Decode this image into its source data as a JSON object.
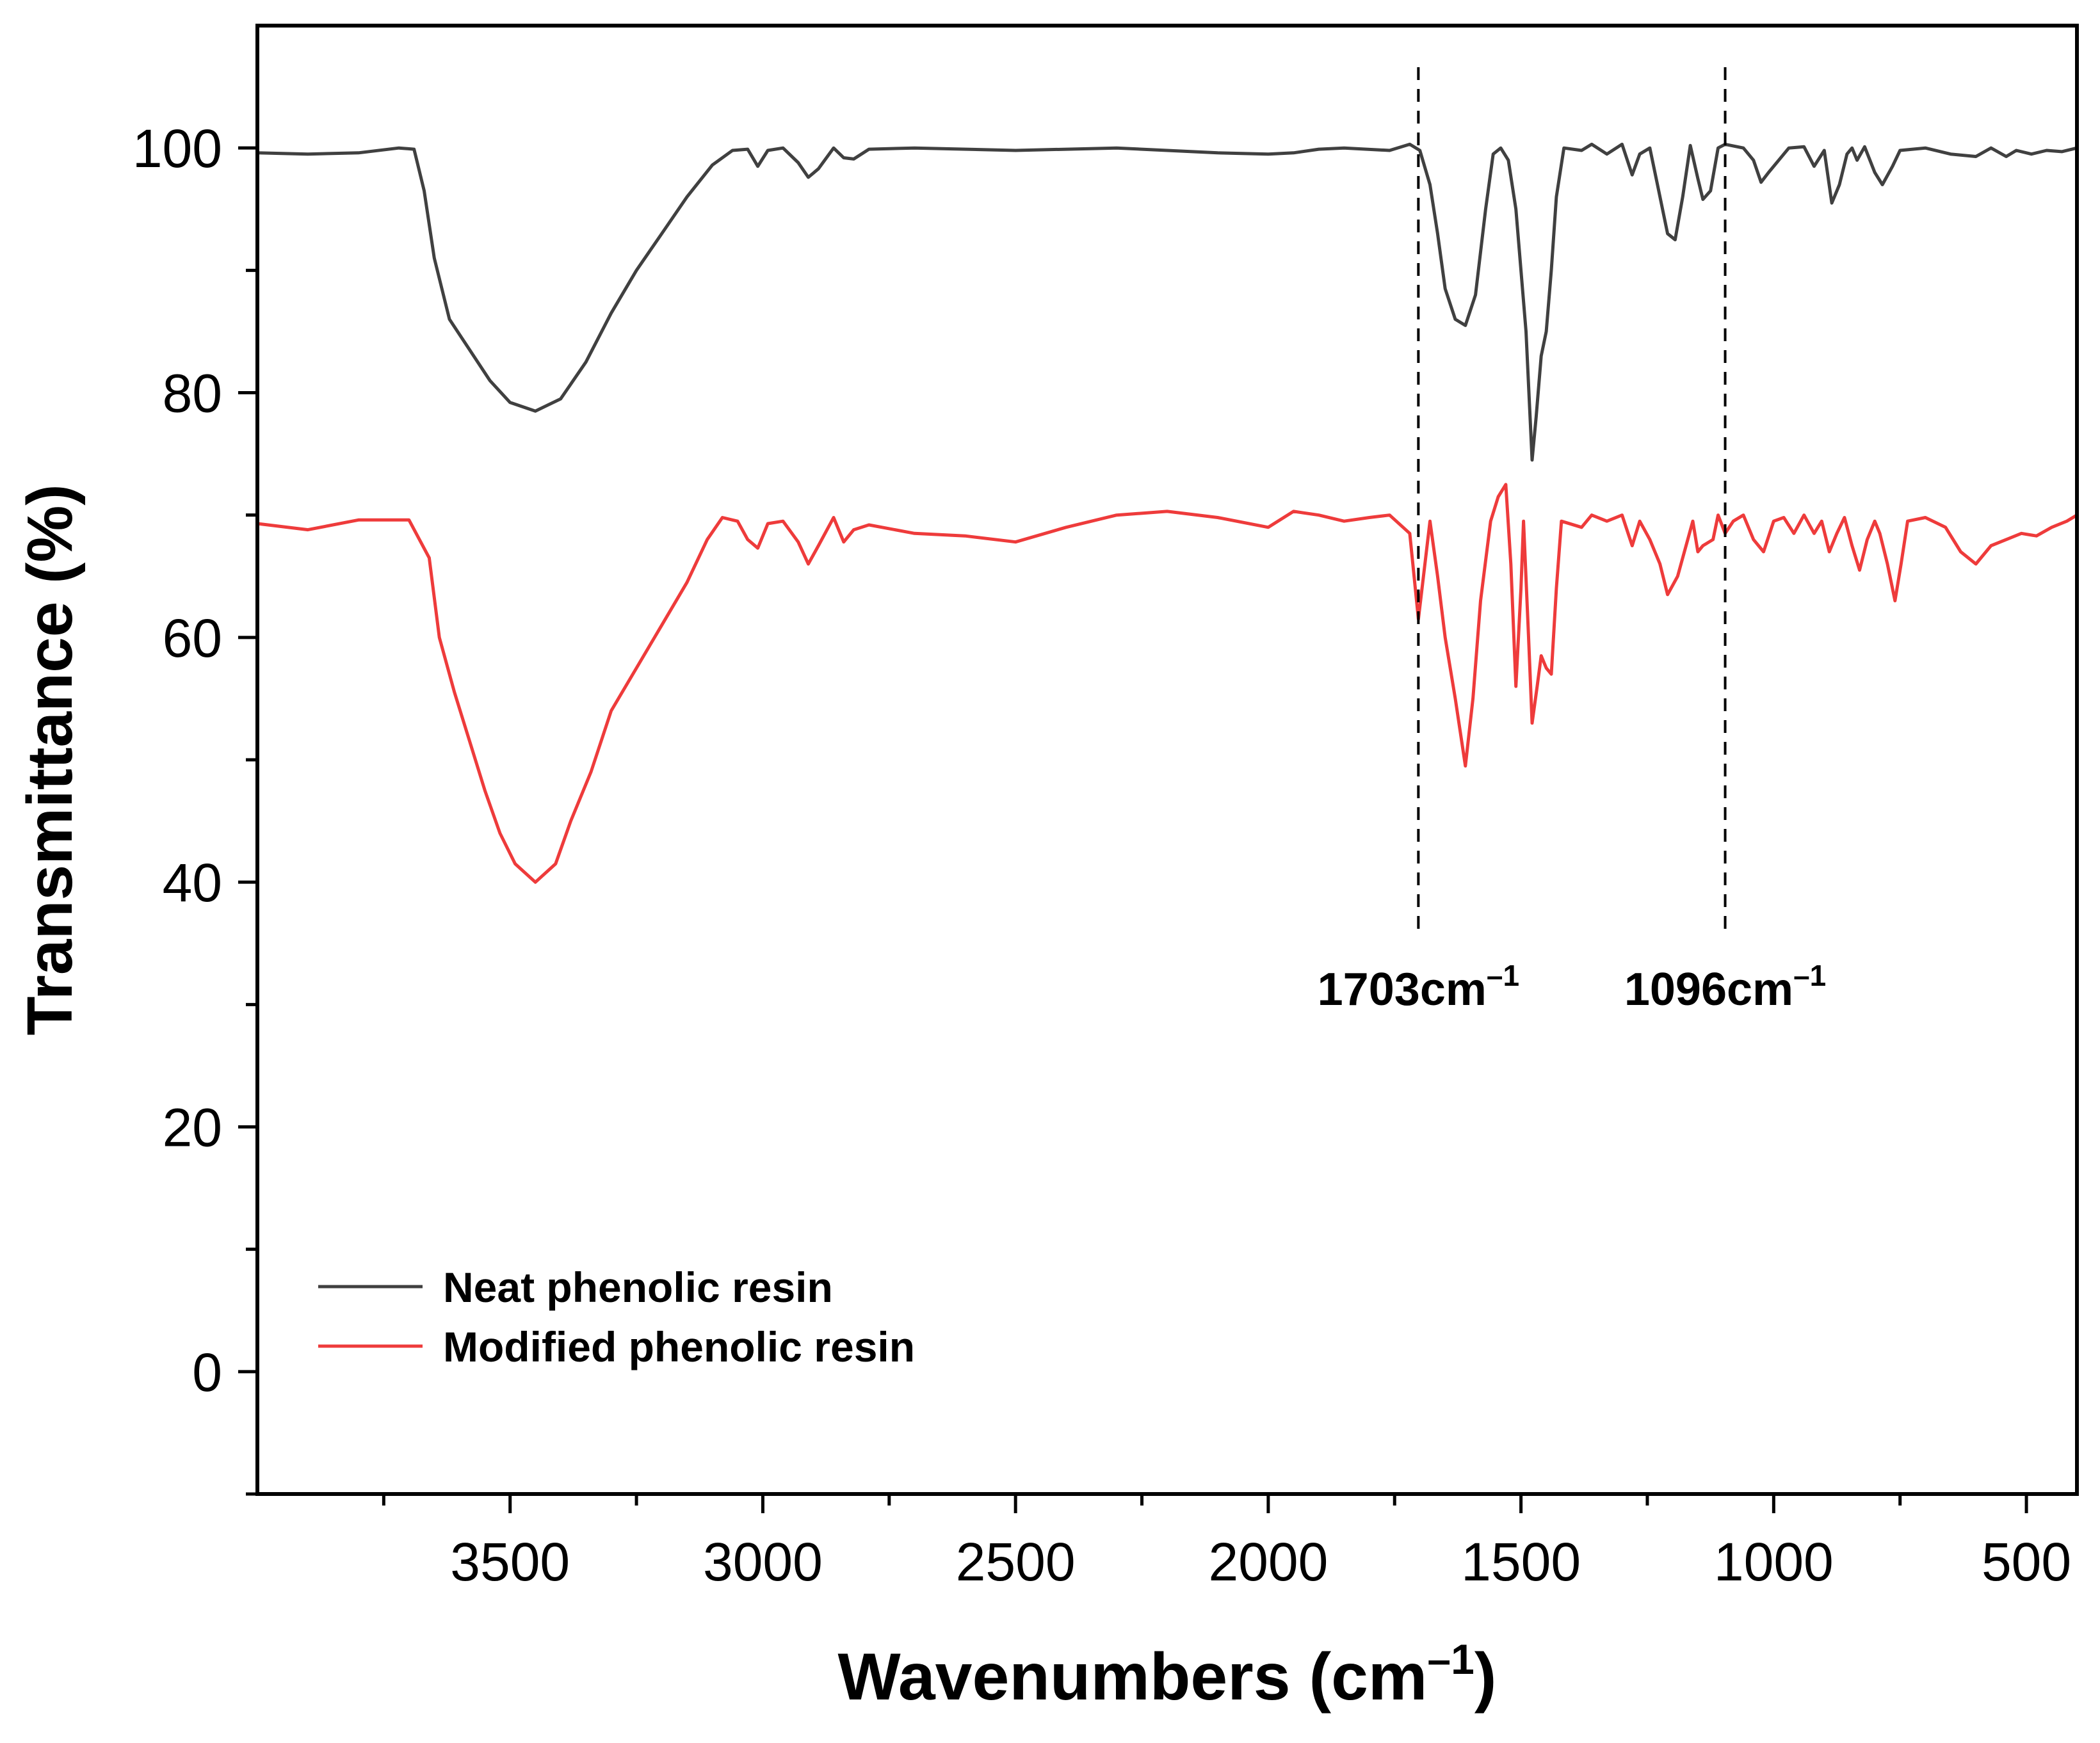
{
  "chart_data": {
    "type": "line",
    "title": "",
    "xlabel": "Wavenumbers (cm",
    "xlabel_sup": "–1",
    "xlabel_close": ")",
    "ylabel": "Transmittance (%)",
    "xlim": [
      4000,
      400
    ],
    "ylim": [
      -10,
      110
    ],
    "x_ticks": [
      3500,
      3000,
      2500,
      2000,
      1500,
      1000,
      500
    ],
    "x_minor_ticks": [
      3750,
      3250,
      2750,
      2250,
      1750,
      1250,
      750
    ],
    "y_ticks": [
      0,
      20,
      40,
      60,
      80,
      100
    ],
    "y_minor_ticks": [
      -10,
      10,
      30,
      50,
      70,
      90
    ],
    "legend_position": "bottom-left",
    "annotations": [
      {
        "x": 1703,
        "label": "1703cm",
        "sup": "–1"
      },
      {
        "x": 1096,
        "label": "1096cm",
        "sup": "–1"
      }
    ],
    "series": [
      {
        "name": "Neat phenolic resin",
        "color": "#404040",
        "points": [
          [
            4000,
            99.6
          ],
          [
            3900,
            99.5
          ],
          [
            3800,
            99.6
          ],
          [
            3720,
            100.0
          ],
          [
            3690,
            99.9
          ],
          [
            3670,
            96.5
          ],
          [
            3650,
            91.0
          ],
          [
            3620,
            86.0
          ],
          [
            3580,
            83.5
          ],
          [
            3540,
            81.0
          ],
          [
            3500,
            79.2
          ],
          [
            3450,
            78.5
          ],
          [
            3400,
            79.5
          ],
          [
            3350,
            82.5
          ],
          [
            3300,
            86.5
          ],
          [
            3250,
            90.0
          ],
          [
            3200,
            93.0
          ],
          [
            3150,
            96.0
          ],
          [
            3100,
            98.6
          ],
          [
            3060,
            99.8
          ],
          [
            3030,
            99.9
          ],
          [
            3010,
            98.5
          ],
          [
            2990,
            99.8
          ],
          [
            2960,
            100.0
          ],
          [
            2930,
            98.8
          ],
          [
            2910,
            97.6
          ],
          [
            2890,
            98.3
          ],
          [
            2860,
            100.0
          ],
          [
            2840,
            99.2
          ],
          [
            2820,
            99.1
          ],
          [
            2790,
            99.9
          ],
          [
            2700,
            100.0
          ],
          [
            2500,
            99.8
          ],
          [
            2300,
            100.0
          ],
          [
            2100,
            99.6
          ],
          [
            2000,
            99.5
          ],
          [
            1950,
            99.6
          ],
          [
            1900,
            99.9
          ],
          [
            1850,
            100.0
          ],
          [
            1760,
            99.8
          ],
          [
            1720,
            100.3
          ],
          [
            1700,
            99.8
          ],
          [
            1680,
            97.0
          ],
          [
            1665,
            93.0
          ],
          [
            1650,
            88.5
          ],
          [
            1630,
            86.0
          ],
          [
            1610,
            85.5
          ],
          [
            1590,
            88.0
          ],
          [
            1570,
            95.0
          ],
          [
            1555,
            99.5
          ],
          [
            1540,
            100.0
          ],
          [
            1525,
            99.0
          ],
          [
            1510,
            95.0
          ],
          [
            1500,
            90.0
          ],
          [
            1490,
            85.0
          ],
          [
            1478,
            74.5
          ],
          [
            1470,
            78.0
          ],
          [
            1460,
            83.0
          ],
          [
            1450,
            85.0
          ],
          [
            1440,
            90.0
          ],
          [
            1430,
            96.0
          ],
          [
            1415,
            100.0
          ],
          [
            1380,
            99.8
          ],
          [
            1360,
            100.3
          ],
          [
            1330,
            99.5
          ],
          [
            1300,
            100.3
          ],
          [
            1280,
            97.8
          ],
          [
            1265,
            99.5
          ],
          [
            1245,
            100.0
          ],
          [
            1230,
            97.0
          ],
          [
            1210,
            93.0
          ],
          [
            1195,
            92.5
          ],
          [
            1180,
            96.0
          ],
          [
            1165,
            100.2
          ],
          [
            1150,
            97.5
          ],
          [
            1140,
            95.8
          ],
          [
            1125,
            96.5
          ],
          [
            1110,
            100.0
          ],
          [
            1096,
            100.3
          ],
          [
            1060,
            100.0
          ],
          [
            1040,
            99.0
          ],
          [
            1025,
            97.2
          ],
          [
            1010,
            98.0
          ],
          [
            990,
            99.0
          ],
          [
            970,
            100.0
          ],
          [
            940,
            100.1
          ],
          [
            920,
            98.5
          ],
          [
            900,
            99.8
          ],
          [
            885,
            95.5
          ],
          [
            870,
            97.0
          ],
          [
            855,
            99.5
          ],
          [
            845,
            100.0
          ],
          [
            835,
            99.0
          ],
          [
            820,
            100.1
          ],
          [
            800,
            98.0
          ],
          [
            785,
            97.0
          ],
          [
            765,
            98.5
          ],
          [
            750,
            99.8
          ],
          [
            700,
            100.0
          ],
          [
            650,
            99.5
          ],
          [
            600,
            99.3
          ],
          [
            570,
            100.0
          ],
          [
            540,
            99.3
          ],
          [
            520,
            99.8
          ],
          [
            490,
            99.5
          ],
          [
            460,
            99.8
          ],
          [
            430,
            99.7
          ],
          [
            400,
            100.0
          ]
        ]
      },
      {
        "name": "Modified phenolic resin",
        "color": "#ee3b3b",
        "points": [
          [
            4000,
            69.3
          ],
          [
            3900,
            68.8
          ],
          [
            3800,
            69.6
          ],
          [
            3700,
            69.6
          ],
          [
            3660,
            66.5
          ],
          [
            3640,
            60.0
          ],
          [
            3610,
            55.5
          ],
          [
            3580,
            51.5
          ],
          [
            3550,
            47.5
          ],
          [
            3520,
            44.0
          ],
          [
            3490,
            41.5
          ],
          [
            3450,
            40.0
          ],
          [
            3410,
            41.5
          ],
          [
            3380,
            45.0
          ],
          [
            3340,
            49.0
          ],
          [
            3300,
            54.0
          ],
          [
            3250,
            57.5
          ],
          [
            3200,
            61.0
          ],
          [
            3150,
            64.5
          ],
          [
            3110,
            68.0
          ],
          [
            3080,
            69.8
          ],
          [
            3050,
            69.5
          ],
          [
            3030,
            68.0
          ],
          [
            3010,
            67.3
          ],
          [
            2990,
            69.3
          ],
          [
            2960,
            69.5
          ],
          [
            2930,
            67.8
          ],
          [
            2910,
            66.0
          ],
          [
            2890,
            67.5
          ],
          [
            2860,
            69.8
          ],
          [
            2840,
            67.8
          ],
          [
            2820,
            68.8
          ],
          [
            2790,
            69.2
          ],
          [
            2700,
            68.5
          ],
          [
            2600,
            68.3
          ],
          [
            2500,
            67.8
          ],
          [
            2400,
            69.0
          ],
          [
            2300,
            70.0
          ],
          [
            2200,
            70.3
          ],
          [
            2100,
            69.8
          ],
          [
            2000,
            69.0
          ],
          [
            1950,
            70.3
          ],
          [
            1900,
            70.0
          ],
          [
            1850,
            69.5
          ],
          [
            1800,
            69.8
          ],
          [
            1760,
            70.0
          ],
          [
            1720,
            68.5
          ],
          [
            1703,
            61.5
          ],
          [
            1690,
            66.0
          ],
          [
            1680,
            69.5
          ],
          [
            1665,
            65.0
          ],
          [
            1650,
            60.0
          ],
          [
            1630,
            55.0
          ],
          [
            1610,
            49.5
          ],
          [
            1595,
            55.0
          ],
          [
            1580,
            63.0
          ],
          [
            1560,
            69.5
          ],
          [
            1545,
            71.5
          ],
          [
            1530,
            72.5
          ],
          [
            1520,
            66.0
          ],
          [
            1510,
            56.0
          ],
          [
            1500,
            64.0
          ],
          [
            1495,
            69.5
          ],
          [
            1485,
            60.0
          ],
          [
            1478,
            53.0
          ],
          [
            1468,
            56.0
          ],
          [
            1460,
            58.5
          ],
          [
            1450,
            57.5
          ],
          [
            1440,
            57.0
          ],
          [
            1430,
            64.0
          ],
          [
            1420,
            69.5
          ],
          [
            1380,
            69.0
          ],
          [
            1360,
            70.0
          ],
          [
            1330,
            69.5
          ],
          [
            1300,
            70.0
          ],
          [
            1280,
            67.5
          ],
          [
            1265,
            69.5
          ],
          [
            1245,
            68.0
          ],
          [
            1225,
            66.0
          ],
          [
            1210,
            63.5
          ],
          [
            1190,
            65.0
          ],
          [
            1170,
            68.0
          ],
          [
            1160,
            69.5
          ],
          [
            1150,
            67.0
          ],
          [
            1140,
            67.5
          ],
          [
            1120,
            68.0
          ],
          [
            1110,
            70.0
          ],
          [
            1096,
            68.5
          ],
          [
            1080,
            69.5
          ],
          [
            1060,
            70.0
          ],
          [
            1040,
            68.0
          ],
          [
            1020,
            67.0
          ],
          [
            1000,
            69.5
          ],
          [
            980,
            69.8
          ],
          [
            960,
            68.5
          ],
          [
            940,
            70.0
          ],
          [
            920,
            68.5
          ],
          [
            905,
            69.5
          ],
          [
            890,
            67.0
          ],
          [
            875,
            68.5
          ],
          [
            860,
            69.8
          ],
          [
            845,
            67.5
          ],
          [
            830,
            65.5
          ],
          [
            815,
            68.0
          ],
          [
            800,
            69.5
          ],
          [
            790,
            68.5
          ],
          [
            775,
            66.0
          ],
          [
            760,
            63.0
          ],
          [
            748,
            66.0
          ],
          [
            735,
            69.5
          ],
          [
            700,
            69.8
          ],
          [
            660,
            69.0
          ],
          [
            630,
            67.0
          ],
          [
            600,
            66.0
          ],
          [
            570,
            67.5
          ],
          [
            540,
            68.0
          ],
          [
            510,
            68.5
          ],
          [
            480,
            68.3
          ],
          [
            450,
            69.0
          ],
          [
            420,
            69.5
          ],
          [
            400,
            70.0
          ]
        ]
      }
    ]
  }
}
